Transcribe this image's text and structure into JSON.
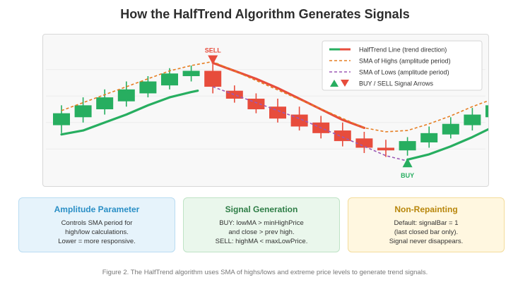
{
  "title": "How the HalfTrend Algorithm Generates Signals",
  "chart_data": {
    "type": "candlestick",
    "ylim": [
      0,
      100
    ],
    "candles": [
      {
        "open": 38,
        "close": 47,
        "high": 53,
        "low": 32
      },
      {
        "open": 44,
        "close": 53,
        "high": 59,
        "low": 40
      },
      {
        "open": 50,
        "close": 59,
        "high": 65,
        "low": 46
      },
      {
        "open": 56,
        "close": 65,
        "high": 71,
        "low": 52
      },
      {
        "open": 62,
        "close": 71,
        "high": 75,
        "low": 59
      },
      {
        "open": 68,
        "close": 77,
        "high": 81,
        "low": 65
      },
      {
        "open": 75,
        "close": 79,
        "high": 83,
        "low": 71
      },
      {
        "open": 79,
        "close": 67,
        "high": 84,
        "low": 62
      },
      {
        "open": 64,
        "close": 58,
        "high": 68,
        "low": 55
      },
      {
        "open": 58,
        "close": 50,
        "high": 62,
        "low": 47
      },
      {
        "open": 52,
        "close": 43,
        "high": 58,
        "low": 40
      },
      {
        "open": 46,
        "close": 37,
        "high": 52,
        "low": 34
      },
      {
        "open": 40,
        "close": 32,
        "high": 45,
        "low": 28
      },
      {
        "open": 34,
        "close": 26,
        "high": 40,
        "low": 22
      },
      {
        "open": 28,
        "close": 21,
        "high": 33,
        "low": 17
      },
      {
        "open": 21,
        "close": 19,
        "high": 27,
        "low": 14
      },
      {
        "open": 19,
        "close": 26,
        "high": 29,
        "low": 15
      },
      {
        "open": 25,
        "close": 32,
        "high": 37,
        "low": 21
      },
      {
        "open": 31,
        "close": 39,
        "high": 44,
        "low": 28
      },
      {
        "open": 38,
        "close": 46,
        "high": 51,
        "low": 34
      },
      {
        "open": 44,
        "close": 53,
        "high": 58,
        "low": 40
      }
    ],
    "series": [
      {
        "name": "HalfTrend Line (trend direction)",
        "color": "#e74c3c",
        "alt_color": "#27ae60",
        "style": "solid",
        "segments": [
          {
            "color": "#27ae60",
            "x": [
              0,
              1,
              2,
              3,
              4,
              5,
              6,
              6.3
            ],
            "y": [
              31,
              34,
              40,
              46,
              53,
              59,
              63,
              64
            ]
          },
          {
            "color": "#e74c3c",
            "x": [
              7,
              8,
              9,
              10,
              11,
              12,
              13,
              14
            ],
            "y": [
              85,
              79,
              73,
              66,
              58,
              50,
              42,
              36
            ]
          },
          {
            "color": "#27ae60",
            "x": [
              16,
              17,
              18,
              19,
              20
            ],
            "y": [
              12,
              16,
              22,
              29,
              37
            ]
          }
        ]
      },
      {
        "name": "SMA of Highs (amplitude period)",
        "color": "#e67e22",
        "style": "dashed",
        "x": [
          0,
          1,
          2,
          3,
          4,
          5,
          6,
          7,
          14,
          15,
          16,
          17,
          18,
          19,
          20
        ],
        "y": [
          49,
          55,
          61,
          67,
          73,
          79,
          83,
          86,
          36,
          33,
          34,
          39,
          45,
          52,
          58
        ]
      },
      {
        "name": "SMA of Lows (amplitude period)",
        "color": "#9b59b6",
        "style": "dashed",
        "x": [
          7,
          8,
          9,
          10,
          11,
          12,
          13,
          14,
          15,
          16
        ],
        "y": [
          67,
          61,
          55,
          49,
          43,
          36,
          29,
          22,
          15,
          11
        ]
      }
    ],
    "signals": [
      {
        "label": "SELL",
        "type": "sell",
        "bar": 7,
        "value": 87,
        "color": "#e74c3c"
      },
      {
        "label": "BUY",
        "type": "buy",
        "bar": 16,
        "value": 10,
        "color": "#27ae60"
      }
    ],
    "legend": {
      "position": "top-right",
      "entries": [
        "HalfTrend Line (trend direction)",
        "SMA of Highs (amplitude period)",
        "SMA of Lows (amplitude period)",
        "BUY / SELL Signal Arrows"
      ]
    },
    "colors": {
      "bull": "#27ae60",
      "bear": "#e74c3c",
      "sma_high": "#e67e22",
      "sma_low": "#9b59b6"
    }
  },
  "cards": {
    "amplitude": {
      "title": "Amplitude Parameter",
      "lines": [
        "Controls SMA period for",
        "high/low calculations.",
        "Lower = more responsive."
      ]
    },
    "signal": {
      "title": "Signal Generation",
      "lines": [
        "BUY: lowMA > minHighPrice",
        "and close > prev high.",
        "SELL: highMA < maxLowPrice."
      ]
    },
    "repaint": {
      "title": "Non-Repainting",
      "lines": [
        "Default: signalBar = 1",
        "(last closed bar only).",
        "Signal never disappears."
      ]
    }
  },
  "caption": "Figure 2. The HalfTrend algorithm uses SMA of highs/lows and extreme price levels to generate trend signals."
}
